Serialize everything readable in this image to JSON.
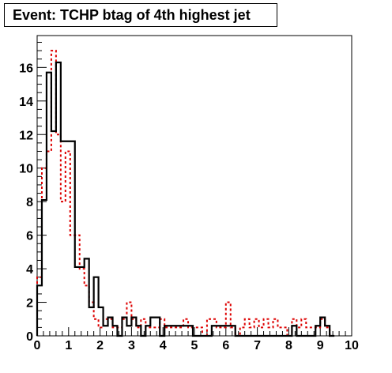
{
  "chart_data": {
    "type": "histogram",
    "title": "Event: TCHP btag of 4th highest jet",
    "xlabel": "",
    "ylabel": "",
    "xlim": [
      0,
      10
    ],
    "ylim": [
      0,
      17.9
    ],
    "x_ticks": [
      "0",
      "1",
      "2",
      "3",
      "4",
      "5",
      "6",
      "7",
      "8",
      "9",
      "10"
    ],
    "y_ticks": [
      "0",
      "2",
      "4",
      "6",
      "8",
      "10",
      "12",
      "14",
      "16"
    ],
    "grid": false,
    "legend": "none",
    "bin_edges": [
      0,
      0.15,
      0.3,
      0.45,
      0.6,
      0.75,
      0.9,
      1.05,
      1.2,
      1.35,
      1.5,
      1.65,
      1.8,
      1.95,
      2.1,
      2.25,
      2.4,
      2.55,
      2.7,
      2.85,
      3.0,
      3.15,
      3.3,
      3.45,
      3.6,
      3.75,
      3.9,
      4.05,
      4.2,
      4.35,
      4.5,
      4.65,
      4.8,
      4.95,
      5.1,
      5.25,
      5.4,
      5.55,
      5.7,
      5.85,
      6.0,
      6.15,
      6.3,
      6.45,
      6.6,
      6.75,
      6.9,
      7.05,
      7.2,
      7.35,
      7.5,
      7.65,
      7.8,
      7.95,
      8.1,
      8.25,
      8.4,
      8.55,
      8.7,
      8.85,
      9.0,
      9.15,
      9.3,
      9.45
    ],
    "series": [
      {
        "color": "#000000",
        "style": "solid",
        "values": [
          3.0,
          8.1,
          15.7,
          12.2,
          16.3,
          11.6,
          11.6,
          11.6,
          4.1,
          4.1,
          4.6,
          1.7,
          3.5,
          1.7,
          0.6,
          1.1,
          0.6,
          0,
          1.1,
          0.6,
          1.1,
          0.6,
          0,
          0.6,
          1.1,
          1.1,
          0,
          0.6,
          0.6,
          0.6,
          0.6,
          0.6,
          0.6,
          0,
          0,
          0,
          0,
          0.6,
          0.6,
          0.6,
          0.6,
          0.6,
          0,
          0,
          0,
          0,
          0,
          0,
          0,
          0,
          0,
          0,
          0,
          0,
          0.6,
          0,
          0,
          0,
          0,
          0.6,
          1.1,
          0.6,
          0
        ]
      },
      {
        "color": "#dd0000",
        "style": "dashed",
        "values": [
          3.5,
          10.0,
          11.0,
          17.0,
          12.0,
          8.0,
          11.0,
          6.0,
          6.0,
          4.0,
          3.0,
          2.0,
          1.0,
          0.5,
          1.0,
          1.0,
          0.5,
          0.5,
          1.0,
          2.0,
          1.0,
          0.5,
          1.0,
          0.5,
          0.5,
          0.5,
          1.0,
          0.5,
          0.5,
          0.5,
          0.5,
          1.0,
          0.5,
          0.5,
          0.5,
          0,
          1.0,
          1.0,
          0.5,
          0.5,
          2.0,
          0.5,
          0,
          0.5,
          1.0,
          0.5,
          1.0,
          0.5,
          1.0,
          0.5,
          1.0,
          0.5,
          0.5,
          0,
          1.0,
          0.5,
          1.0,
          0.5,
          0.5,
          0.5,
          1.0,
          0.5,
          0
        ]
      }
    ]
  }
}
